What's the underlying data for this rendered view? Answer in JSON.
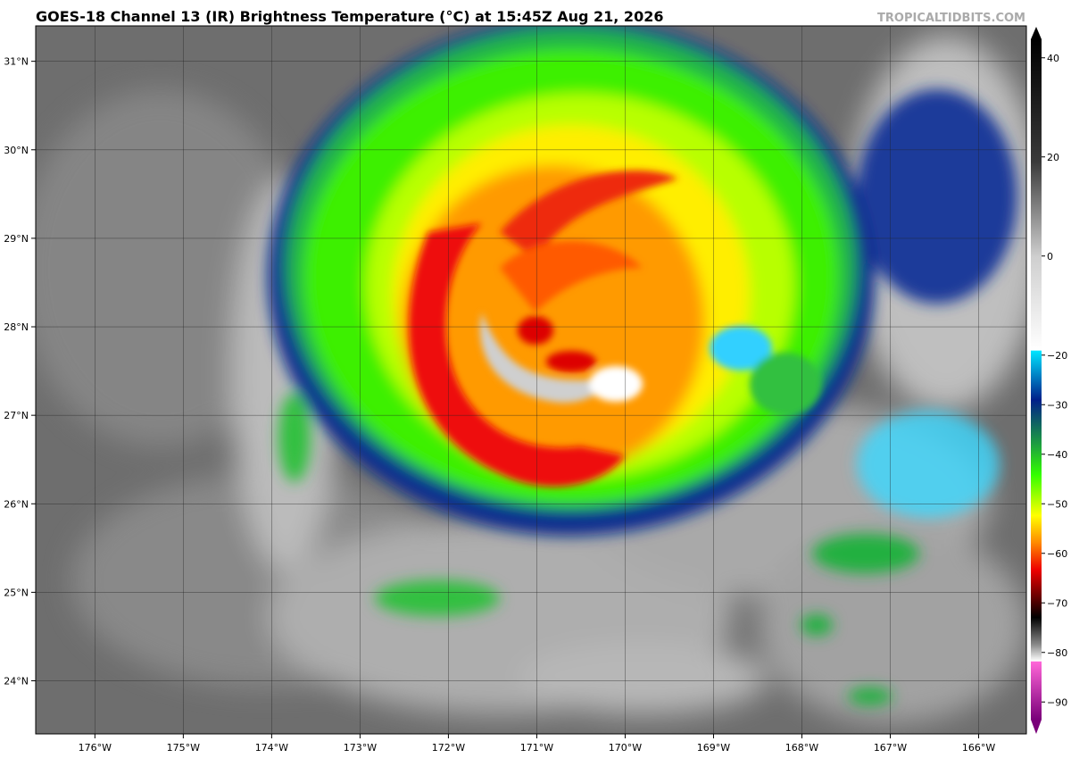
{
  "header": {
    "title": "GOES-18 Channel 13 (IR) Brightness Temperature (°C) at 15:45Z Aug 21, 2026",
    "credit": "TROPICALTIDBITS.COM"
  },
  "map": {
    "lonlim": [
      -176.67,
      -165.46
    ],
    "latlim": [
      23.4,
      31.4
    ],
    "lon_ticks": [
      {
        "value": -176,
        "label": "176°W"
      },
      {
        "value": -175,
        "label": "175°W"
      },
      {
        "value": -174,
        "label": "174°W"
      },
      {
        "value": -173,
        "label": "173°W"
      },
      {
        "value": -172,
        "label": "172°W"
      },
      {
        "value": -171,
        "label": "171°W"
      },
      {
        "value": -170,
        "label": "170°W"
      },
      {
        "value": -169,
        "label": "169°W"
      },
      {
        "value": -168,
        "label": "168°W"
      },
      {
        "value": -167,
        "label": "167°W"
      },
      {
        "value": -166,
        "label": "166°W"
      }
    ],
    "lat_ticks": [
      {
        "value": 31,
        "label": "31°N"
      },
      {
        "value": 30,
        "label": "30°N"
      },
      {
        "value": 29,
        "label": "29°N"
      },
      {
        "value": 28,
        "label": "28°N"
      },
      {
        "value": 27,
        "label": "27°N"
      },
      {
        "value": 26,
        "label": "26°N"
      },
      {
        "value": 25,
        "label": "25°N"
      },
      {
        "value": 24,
        "label": "24°N"
      }
    ]
  },
  "colorbar": {
    "lim": [
      -95,
      45
    ],
    "ticks": [
      40,
      20,
      0,
      {
        "value": -20,
        "label": "−20"
      },
      {
        "value": -30,
        "label": "−30"
      },
      {
        "value": -40,
        "label": "−40"
      },
      {
        "value": -50,
        "label": "−50"
      },
      {
        "value": -60,
        "label": "−60"
      },
      {
        "value": -70,
        "label": "−70"
      },
      {
        "value": -80,
        "label": "−80"
      },
      {
        "value": -90,
        "label": "−90"
      }
    ]
  }
}
